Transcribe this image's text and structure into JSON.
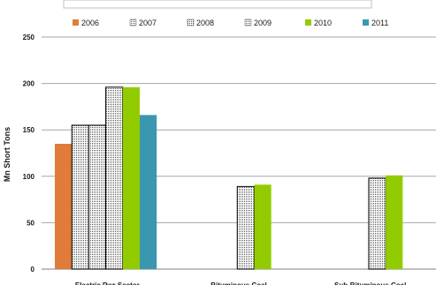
{
  "chart_data": {
    "type": "bar",
    "title": "",
    "xlabel": "",
    "ylabel": "Mn Short Tons",
    "ylim": [
      0,
      250
    ],
    "yticks": [
      0,
      50,
      100,
      150,
      200,
      250
    ],
    "grid": true,
    "legend_position": "top",
    "categories": [
      "Electric Pwr Sector",
      "Bituminous Coal",
      "Sub-Bituminous Coal"
    ],
    "series": [
      {
        "name": "2006",
        "color": "#e07b39",
        "pattern": "solid",
        "values": [
          135,
          0,
          0
        ]
      },
      {
        "name": "2007",
        "color": "#ffffff",
        "pattern": "dotted",
        "values": [
          155,
          0,
          0
        ]
      },
      {
        "name": "2008",
        "color": "#ffffff",
        "pattern": "dotted",
        "values": [
          155,
          0,
          0
        ]
      },
      {
        "name": "2009",
        "color": "#ffffff",
        "pattern": "dotted",
        "values": [
          196,
          89,
          98
        ]
      },
      {
        "name": "2010",
        "color": "#92cc00",
        "pattern": "solid",
        "values": [
          196,
          91,
          101
        ]
      },
      {
        "name": "2011",
        "color": "#3a97b0",
        "pattern": "solid",
        "values": [
          166,
          0,
          0
        ]
      }
    ]
  }
}
